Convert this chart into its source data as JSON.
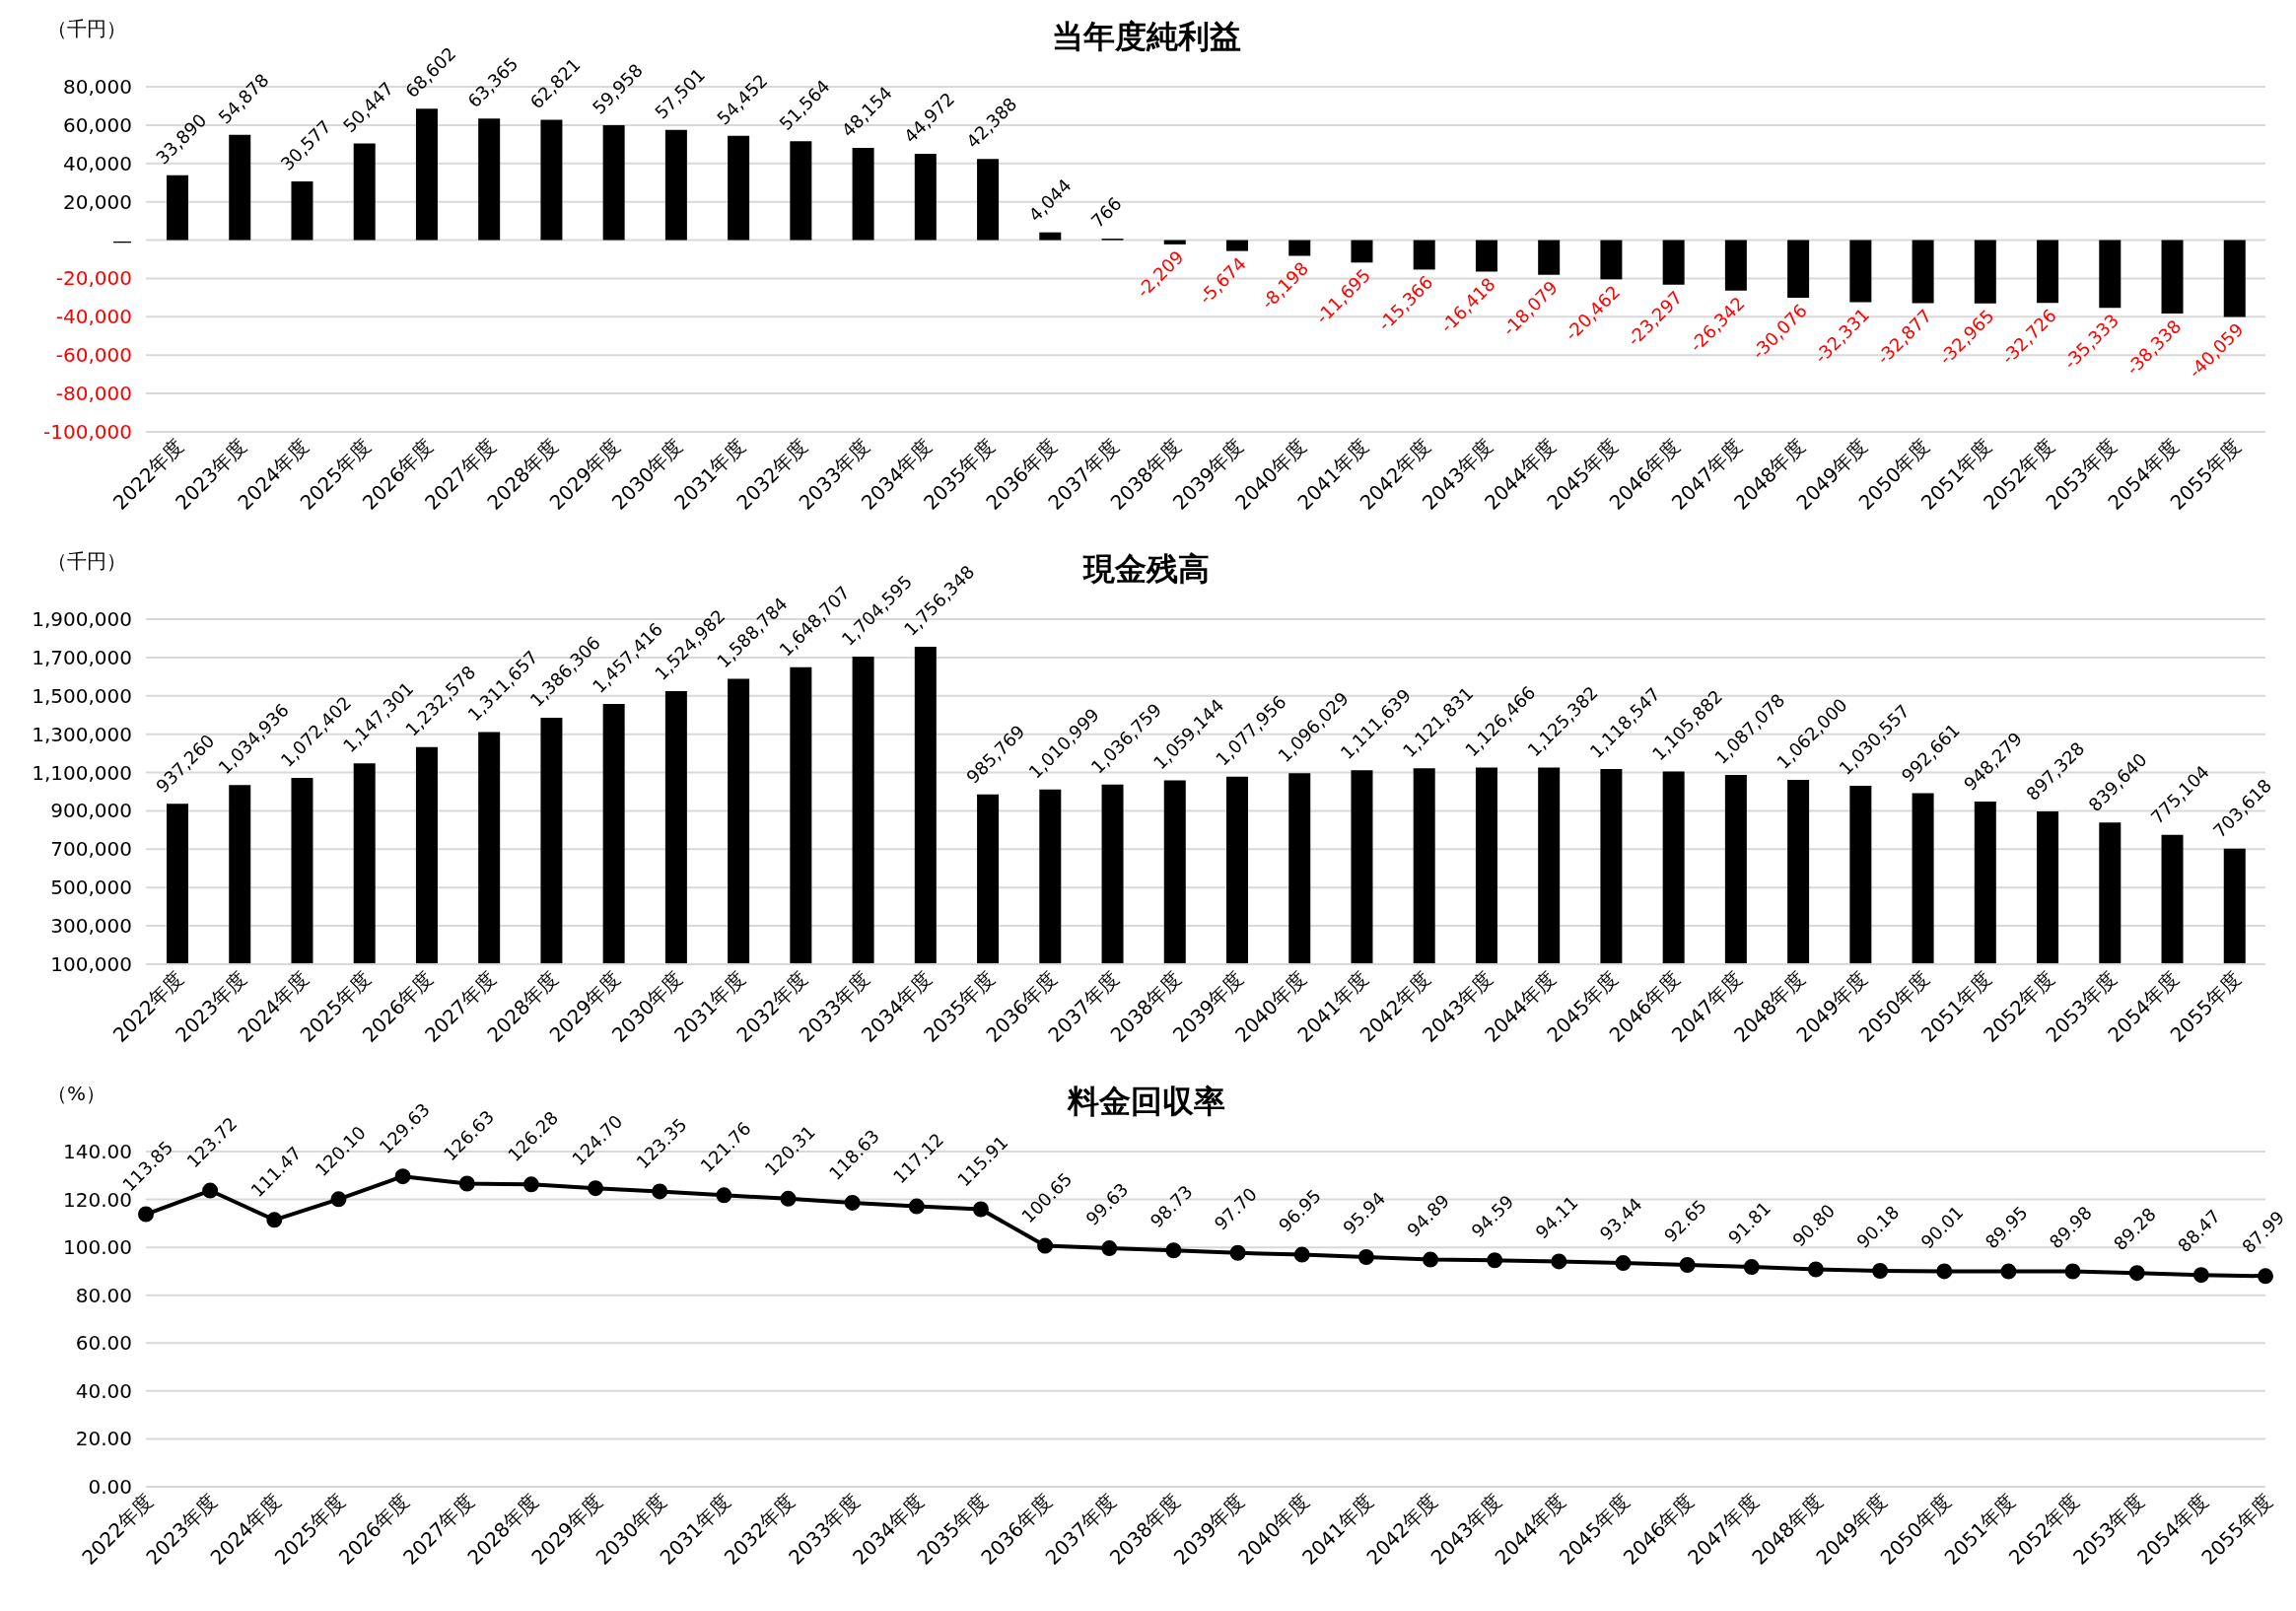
{
  "chart_data": [
    {
      "type": "bar",
      "title": "当年度純利益",
      "ylabel": "（千円）",
      "categories": [
        "2022年度",
        "2023年度",
        "2024年度",
        "2025年度",
        "2026年度",
        "2027年度",
        "2028年度",
        "2029年度",
        "2030年度",
        "2031年度",
        "2032年度",
        "2033年度",
        "2034年度",
        "2035年度",
        "2036年度",
        "2037年度",
        "2038年度",
        "2039年度",
        "2040年度",
        "2041年度",
        "2042年度",
        "2043年度",
        "2044年度",
        "2045年度",
        "2046年度",
        "2047年度",
        "2048年度",
        "2049年度",
        "2050年度",
        "2051年度",
        "2052年度",
        "2053年度",
        "2054年度",
        "2055年度"
      ],
      "series": [
        {
          "color": "#000000",
          "values": [
            33890,
            54878,
            30577,
            50447,
            68602,
            63365,
            62821,
            59958,
            57501,
            54452,
            51564,
            48154,
            44972,
            42388,
            4044,
            766,
            -2209,
            -5674,
            -8198,
            -11695,
            -15366,
            -16418,
            -18079,
            -20462,
            -23297,
            -26342,
            -30076,
            -32331,
            -32877,
            -32965,
            -32726,
            -35333,
            -38338,
            -40059
          ],
          "value_labels": [
            "33,890",
            "54,878",
            "30,577",
            "50,447",
            "68,602",
            "63,365",
            "62,821",
            "59,958",
            "57,501",
            "54,452",
            "51,564",
            "48,154",
            "44,972",
            "42,388",
            "4,044",
            "766",
            "-2,209",
            "-5,674",
            "-8,198",
            "-11,695",
            "-15,366",
            "-16,418",
            "-18,079",
            "-20,462",
            "-23,297",
            "-26,342",
            "-30,076",
            "-32,331",
            "-32,877",
            "-32,965",
            "-32,726",
            "-35,333",
            "-38,338",
            "-40,059"
          ]
        }
      ],
      "ylim": [
        -100000,
        80000
      ],
      "yticks": [
        {
          "value": -100000,
          "label": "-100,000"
        },
        {
          "value": -80000,
          "label": "-80,000"
        },
        {
          "value": -60000,
          "label": "-60,000"
        },
        {
          "value": -40000,
          "label": "-40,000"
        },
        {
          "value": -20000,
          "label": "-20,000"
        },
        {
          "value": 0,
          "label": "—"
        },
        {
          "value": 20000,
          "label": "20,000"
        },
        {
          "value": 40000,
          "label": "40,000"
        },
        {
          "value": 60000,
          "label": "60,000"
        },
        {
          "value": 80000,
          "label": "80,000"
        }
      ],
      "grid": "y"
    },
    {
      "type": "bar",
      "title": "現金残高",
      "ylabel": "（千円）",
      "categories": [
        "2022年度",
        "2023年度",
        "2024年度",
        "2025年度",
        "2026年度",
        "2027年度",
        "2028年度",
        "2029年度",
        "2030年度",
        "2031年度",
        "2032年度",
        "2033年度",
        "2034年度",
        "2035年度",
        "2036年度",
        "2037年度",
        "2038年度",
        "2039年度",
        "2040年度",
        "2041年度",
        "2042年度",
        "2043年度",
        "2044年度",
        "2045年度",
        "2046年度",
        "2047年度",
        "2048年度",
        "2049年度",
        "2050年度",
        "2051年度",
        "2052年度",
        "2053年度",
        "2054年度",
        "2055年度"
      ],
      "series": [
        {
          "color": "#000000",
          "values": [
            937260,
            1034936,
            1072402,
            1147301,
            1232578,
            1311657,
            1386306,
            1457416,
            1524982,
            1588784,
            1648707,
            1704595,
            1756348,
            985769,
            1010999,
            1036759,
            1059144,
            1077956,
            1096029,
            1111639,
            1121831,
            1126466,
            1125382,
            1118547,
            1105882,
            1087078,
            1062000,
            1030557,
            992661,
            948279,
            897328,
            839640,
            775104,
            703618
          ],
          "value_labels": [
            "937,260",
            "1,034,936",
            "1,072,402",
            "1,147,301",
            "1,232,578",
            "1,311,657",
            "1,386,306",
            "1,457,416",
            "1,524,982",
            "1,588,784",
            "1,648,707",
            "1,704,595",
            "1,756,348",
            "985,769",
            "1,010,999",
            "1,036,759",
            "1,059,144",
            "1,077,956",
            "1,096,029",
            "1,111,639",
            "1,121,831",
            "1,126,466",
            "1,125,382",
            "1,118,547",
            "1,105,882",
            "1,087,078",
            "1,062,000",
            "1,030,557",
            "992,661",
            "948,279",
            "897,328",
            "839,640",
            "775,104",
            "703,618"
          ]
        }
      ],
      "ylim": [
        100000,
        1900000
      ],
      "yticks": [
        {
          "value": 100000,
          "label": "100,000"
        },
        {
          "value": 300000,
          "label": "300,000"
        },
        {
          "value": 500000,
          "label": "500,000"
        },
        {
          "value": 700000,
          "label": "700,000"
        },
        {
          "value": 900000,
          "label": "900,000"
        },
        {
          "value": 1100000,
          "label": "1,100,000"
        },
        {
          "value": 1300000,
          "label": "1,300,000"
        },
        {
          "value": 1500000,
          "label": "1,500,000"
        },
        {
          "value": 1700000,
          "label": "1,700,000"
        },
        {
          "value": 1900000,
          "label": "1,900,000"
        }
      ],
      "grid": "y"
    },
    {
      "type": "line",
      "title": "料金回収率",
      "ylabel": "（%）",
      "marker": "circle",
      "categories": [
        "2022年度",
        "2023年度",
        "2024年度",
        "2025年度",
        "2026年度",
        "2027年度",
        "2028年度",
        "2029年度",
        "2030年度",
        "2031年度",
        "2032年度",
        "2033年度",
        "2034年度",
        "2035年度",
        "2036年度",
        "2037年度",
        "2038年度",
        "2039年度",
        "2040年度",
        "2041年度",
        "2042年度",
        "2043年度",
        "2044年度",
        "2045年度",
        "2046年度",
        "2047年度",
        "2048年度",
        "2049年度",
        "2050年度",
        "2051年度",
        "2052年度",
        "2053年度",
        "2054年度",
        "2055年度"
      ],
      "series": [
        {
          "color": "#000000",
          "values": [
            113.85,
            123.72,
            111.47,
            120.1,
            129.63,
            126.63,
            126.28,
            124.7,
            123.35,
            121.76,
            120.31,
            118.63,
            117.12,
            115.91,
            100.65,
            99.63,
            98.73,
            97.7,
            96.95,
            95.94,
            94.89,
            94.59,
            94.11,
            93.44,
            92.65,
            91.81,
            90.8,
            90.18,
            90.01,
            89.95,
            89.98,
            89.28,
            88.47,
            87.99
          ],
          "value_labels": [
            "113.85",
            "123.72",
            "111.47",
            "120.10",
            "129.63",
            "126.63",
            "126.28",
            "124.70",
            "123.35",
            "121.76",
            "120.31",
            "118.63",
            "117.12",
            "115.91",
            "100.65",
            "99.63",
            "98.73",
            "97.70",
            "96.95",
            "95.94",
            "94.89",
            "94.59",
            "94.11",
            "93.44",
            "92.65",
            "91.81",
            "90.80",
            "90.18",
            "90.01",
            "89.95",
            "89.98",
            "89.28",
            "88.47",
            "87.99"
          ]
        }
      ],
      "ylim": [
        0,
        140
      ],
      "yticks": [
        {
          "value": 0,
          "label": "0.00"
        },
        {
          "value": 20,
          "label": "20.00"
        },
        {
          "value": 40,
          "label": "40.00"
        },
        {
          "value": 60,
          "label": "60.00"
        },
        {
          "value": 80,
          "label": "80.00"
        },
        {
          "value": 100,
          "label": "100.00"
        },
        {
          "value": 120,
          "label": "120.00"
        },
        {
          "value": 140,
          "label": "140.00"
        }
      ],
      "grid": "y"
    }
  ]
}
